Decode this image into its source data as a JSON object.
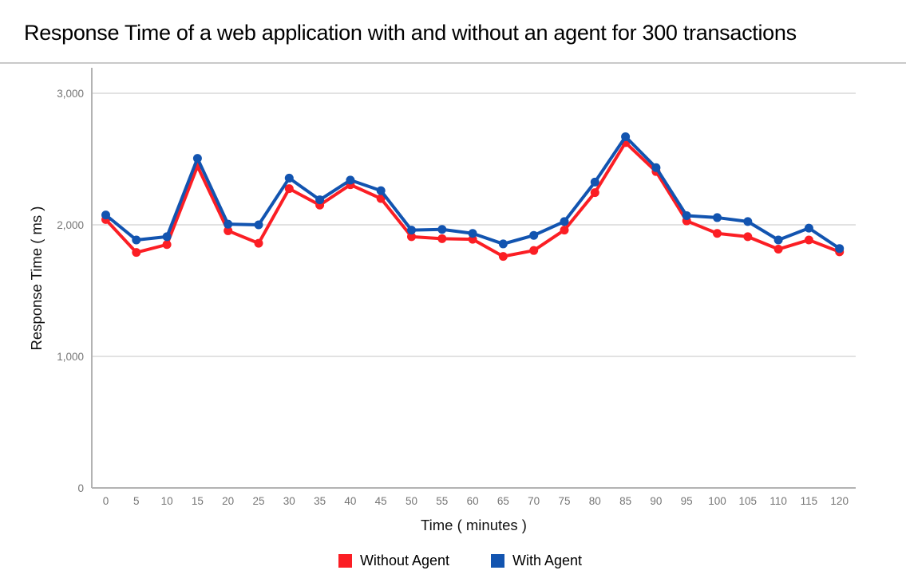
{
  "chart_data": {
    "type": "line",
    "title": "Response Time of a web application with and without an agent for 300 transactions",
    "xlabel": "Time ( minutes )",
    "ylabel": "Response Time ( ms )",
    "x": [
      0,
      5,
      10,
      15,
      20,
      25,
      30,
      35,
      40,
      45,
      50,
      55,
      60,
      65,
      70,
      75,
      80,
      85,
      90,
      95,
      100,
      105,
      110,
      115,
      120
    ],
    "series": [
      {
        "name": "Without Agent",
        "color": "#fb1e24",
        "values": [
          2040,
          1790,
          1850,
          2445,
          1955,
          1860,
          2275,
          2150,
          2305,
          2200,
          1910,
          1895,
          1890,
          1760,
          1805,
          1960,
          2245,
          2625,
          2405,
          2030,
          1935,
          1910,
          1815,
          1885,
          1795
        ]
      },
      {
        "name": "With Agent",
        "color": "#1254b0",
        "values": [
          2075,
          1885,
          1910,
          2505,
          2005,
          2000,
          2355,
          2190,
          2340,
          2260,
          1960,
          1965,
          1935,
          1855,
          1920,
          2025,
          2325,
          2670,
          2435,
          2070,
          2055,
          2025,
          1885,
          1975,
          1820
        ]
      }
    ],
    "ylim": [
      0,
      3000
    ],
    "yticks": [
      0,
      1000,
      2000,
      3000
    ],
    "grid": true,
    "legend_position": "bottom",
    "marker": "circle"
  },
  "style": {
    "grid_color": "#d9d9d9",
    "axis_color": "#b3b3b3",
    "tick_label_color": "#757575",
    "title_color": "#000000",
    "axis_title_color": "#111111",
    "background": "#ffffff"
  }
}
